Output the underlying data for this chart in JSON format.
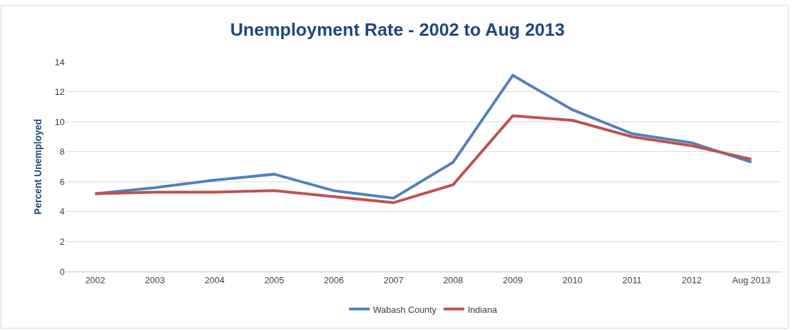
{
  "chart_data": {
    "type": "line",
    "title": "Unemployment Rate - 2002 to Aug 2013",
    "ylabel": "Percent Unemployed",
    "categories": [
      "2002",
      "2003",
      "2004",
      "2005",
      "2006",
      "2007",
      "2008",
      "2009",
      "2010",
      "2011",
      "2012",
      "Aug 2013"
    ],
    "series": [
      {
        "name": "Wabash County",
        "color": "#4f81bd",
        "values": [
          5.2,
          5.6,
          6.1,
          6.5,
          5.4,
          4.9,
          7.3,
          13.1,
          10.8,
          9.2,
          8.6,
          7.3
        ]
      },
      {
        "name": "Indiana",
        "color": "#c0504d",
        "values": [
          5.2,
          5.3,
          5.3,
          5.4,
          5.0,
          4.6,
          5.8,
          10.4,
          10.1,
          9.0,
          8.4,
          7.5
        ]
      }
    ],
    "ylim": [
      0,
      14
    ],
    "yticks": [
      0,
      2,
      4,
      6,
      8,
      10,
      12,
      14
    ],
    "grid": "y",
    "legend": "bottom",
    "marker": "none",
    "line_style": "solid"
  }
}
